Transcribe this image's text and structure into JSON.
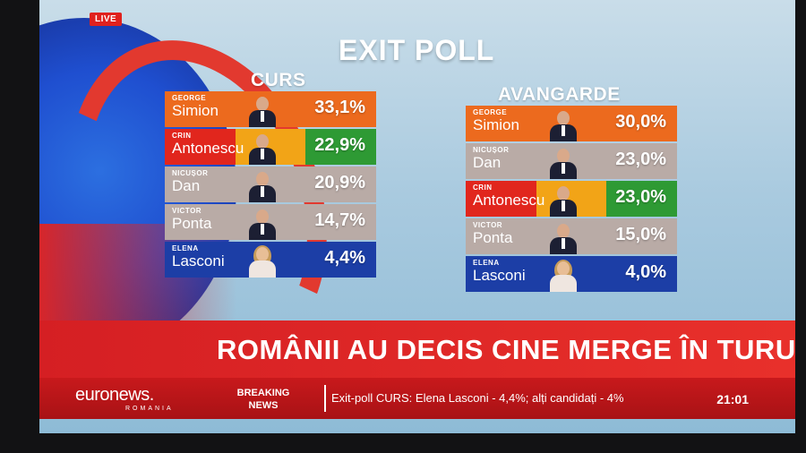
{
  "live_badge": "LIVE",
  "title": "EXIT POLL",
  "polls": [
    {
      "name": "CURS",
      "rows": [
        {
          "first": "GEORGE",
          "last": "Simion",
          "value": "33,1%",
          "colors": [
            "#ec6a1e"
          ],
          "gender": "m"
        },
        {
          "first": "CRIN",
          "last": "Antonescu",
          "value": "22,9%",
          "colors": [
            "#e1261d",
            "#f2a417",
            "#2e9a34"
          ],
          "gender": "m"
        },
        {
          "first": "NICUȘOR",
          "last": "Dan",
          "value": "20,9%",
          "colors": [
            "#b9aba6"
          ],
          "gender": "m"
        },
        {
          "first": "VICTOR",
          "last": "Ponta",
          "value": "14,7%",
          "colors": [
            "#b9aba6"
          ],
          "gender": "m"
        },
        {
          "first": "ELENA",
          "last": "Lasconi",
          "value": "4,4%",
          "colors": [
            "#1c3ea6"
          ],
          "gender": "f"
        }
      ]
    },
    {
      "name": "AVANGARDE",
      "rows": [
        {
          "first": "GEORGE",
          "last": "Simion",
          "value": "30,0%",
          "colors": [
            "#ec6a1e"
          ],
          "gender": "m"
        },
        {
          "first": "NICUȘOR",
          "last": "Dan",
          "value": "23,0%",
          "colors": [
            "#b9aba6"
          ],
          "gender": "m"
        },
        {
          "first": "CRIN",
          "last": "Antonescu",
          "value": "23,0%",
          "colors": [
            "#e1261d",
            "#f2a417",
            "#2e9a34"
          ],
          "gender": "m"
        },
        {
          "first": "VICTOR",
          "last": "Ponta",
          "value": "15,0%",
          "colors": [
            "#b9aba6"
          ],
          "gender": "m"
        },
        {
          "first": "ELENA",
          "last": "Lasconi",
          "value": "4,0%",
          "colors": [
            "#1c3ea6"
          ],
          "gender": "f"
        }
      ]
    }
  ],
  "headline": "ROMÂNII AU DECIS CINE MERGE ÎN TURUL II",
  "ticker": {
    "logo": "euronews.",
    "logo_sub": "ROMANIA",
    "breaking_line1": "BREAKING",
    "breaking_line2": "NEWS",
    "text": "Exit-poll CURS: Elena Lasconi - 4,4%; alți candidați - 4%",
    "time": "21:01"
  },
  "colors": {
    "accent_red": "#e0211d",
    "brand_orange": "#ec6a1e",
    "brand_blue": "#1c3ea6"
  }
}
